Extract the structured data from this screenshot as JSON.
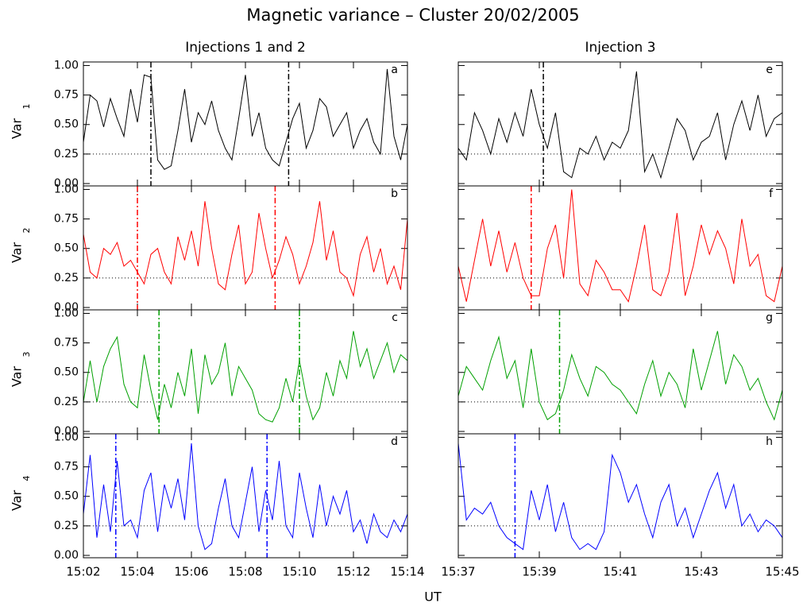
{
  "title": "Magnetic variance – Cluster 20/02/2005",
  "xlabel": "UT",
  "chart_data": [
    {
      "type": "line",
      "title": "Injections 1 and 2",
      "label": "a",
      "ylabel": "Var",
      "ylabel_sub": "1",
      "color": "#000000",
      "x": [
        2,
        2.25,
        2.5,
        2.75,
        3,
        3.25,
        3.5,
        3.75,
        4,
        4.25,
        4.5,
        4.75,
        5,
        5.25,
        5.5,
        5.75,
        6,
        6.25,
        6.5,
        6.75,
        7,
        7.25,
        7.5,
        7.75,
        8,
        8.25,
        8.5,
        8.75,
        9,
        9.25,
        9.5,
        9.75,
        10,
        10.25,
        10.5,
        10.75,
        11,
        11.25,
        11.5,
        11.75,
        12,
        12.25,
        12.5,
        12.75,
        13,
        13.25,
        13.5,
        13.75,
        14
      ],
      "values": [
        0.35,
        0.75,
        0.7,
        0.48,
        0.72,
        0.55,
        0.4,
        0.8,
        0.52,
        0.92,
        0.9,
        0.2,
        0.12,
        0.15,
        0.45,
        0.8,
        0.35,
        0.6,
        0.5,
        0.7,
        0.45,
        0.3,
        0.2,
        0.55,
        0.92,
        0.4,
        0.6,
        0.3,
        0.2,
        0.15,
        0.35,
        0.55,
        0.68,
        0.3,
        0.45,
        0.72,
        0.65,
        0.4,
        0.5,
        0.6,
        0.3,
        0.45,
        0.55,
        0.35,
        0.25,
        0.97,
        0.4,
        0.2,
        0.5
      ],
      "vlines": [
        4.5,
        9.6
      ],
      "hline": 0.25,
      "xlim": [
        2,
        14
      ],
      "xticks": [
        2,
        4,
        6,
        8,
        10,
        12,
        14
      ],
      "ylim": [
        -0.02,
        1.03
      ],
      "yticks": [
        {
          "value": 0,
          "label": "0.00"
        },
        {
          "value": 0.25,
          "label": "0.25"
        },
        {
          "value": 0.5,
          "label": "0.50"
        },
        {
          "value": 0.75,
          "label": "0.75"
        },
        {
          "value": 1,
          "label": "1.00"
        }
      ]
    },
    {
      "type": "line",
      "label": "b",
      "ylabel": "Var",
      "ylabel_sub": "2",
      "color": "#ff0000",
      "x": [
        2,
        2.25,
        2.5,
        2.75,
        3,
        3.25,
        3.5,
        3.75,
        4,
        4.25,
        4.5,
        4.75,
        5,
        5.25,
        5.5,
        5.75,
        6,
        6.25,
        6.5,
        6.75,
        7,
        7.25,
        7.5,
        7.75,
        8,
        8.25,
        8.5,
        8.75,
        9,
        9.25,
        9.5,
        9.75,
        10,
        10.25,
        10.5,
        10.75,
        11,
        11.25,
        11.5,
        11.75,
        12,
        12.25,
        12.5,
        12.75,
        13,
        13.25,
        13.5,
        13.75,
        14
      ],
      "values": [
        0.62,
        0.3,
        0.25,
        0.5,
        0.45,
        0.55,
        0.35,
        0.4,
        0.3,
        0.2,
        0.45,
        0.5,
        0.3,
        0.2,
        0.6,
        0.4,
        0.65,
        0.35,
        0.9,
        0.5,
        0.2,
        0.15,
        0.45,
        0.7,
        0.2,
        0.3,
        0.8,
        0.5,
        0.25,
        0.4,
        0.6,
        0.45,
        0.2,
        0.35,
        0.55,
        0.9,
        0.4,
        0.65,
        0.3,
        0.25,
        0.1,
        0.45,
        0.6,
        0.3,
        0.5,
        0.2,
        0.35,
        0.15,
        0.75
      ],
      "vlines": [
        4.0,
        9.1
      ],
      "hline": 0.25,
      "xlim": [
        2,
        14
      ],
      "xticks": [
        2,
        4,
        6,
        8,
        10,
        12,
        14
      ],
      "ylim": [
        -0.02,
        1.03
      ],
      "yticks": [
        {
          "value": 0,
          "label": "0.00"
        },
        {
          "value": 0.25,
          "label": "0.25"
        },
        {
          "value": 0.5,
          "label": "0.50"
        },
        {
          "value": 0.75,
          "label": "0.75"
        },
        {
          "value": 1,
          "label": "1.00"
        }
      ]
    },
    {
      "type": "line",
      "label": "c",
      "ylabel": "Var",
      "ylabel_sub": "3",
      "color": "#00a000",
      "x": [
        2,
        2.25,
        2.5,
        2.75,
        3,
        3.25,
        3.5,
        3.75,
        4,
        4.25,
        4.5,
        4.75,
        5,
        5.25,
        5.5,
        5.75,
        6,
        6.25,
        6.5,
        6.75,
        7,
        7.25,
        7.5,
        7.75,
        8,
        8.25,
        8.5,
        8.75,
        9,
        9.25,
        9.5,
        9.75,
        10,
        10.25,
        10.5,
        10.75,
        11,
        11.25,
        11.5,
        11.75,
        12,
        12.25,
        12.5,
        12.75,
        13,
        13.25,
        13.5,
        13.75,
        14
      ],
      "values": [
        0.25,
        0.6,
        0.25,
        0.55,
        0.7,
        0.8,
        0.4,
        0.25,
        0.2,
        0.65,
        0.35,
        0.1,
        0.4,
        0.2,
        0.5,
        0.3,
        0.7,
        0.15,
        0.65,
        0.4,
        0.5,
        0.75,
        0.3,
        0.55,
        0.45,
        0.35,
        0.15,
        0.1,
        0.08,
        0.2,
        0.45,
        0.25,
        0.6,
        0.3,
        0.1,
        0.2,
        0.5,
        0.3,
        0.6,
        0.45,
        0.85,
        0.55,
        0.7,
        0.45,
        0.6,
        0.75,
        0.5,
        0.65,
        0.6
      ],
      "vlines": [
        4.8,
        10.0
      ],
      "hline": 0.25,
      "xlim": [
        2,
        14
      ],
      "xticks": [
        2,
        4,
        6,
        8,
        10,
        12,
        14
      ],
      "ylim": [
        -0.02,
        1.03
      ],
      "yticks": [
        {
          "value": 0,
          "label": "0.00"
        },
        {
          "value": 0.25,
          "label": "0.25"
        },
        {
          "value": 0.5,
          "label": "0.50"
        },
        {
          "value": 0.75,
          "label": "0.75"
        },
        {
          "value": 1,
          "label": "1.00"
        }
      ]
    },
    {
      "type": "line",
      "label": "d",
      "ylabel": "Var",
      "ylabel_sub": "4",
      "color": "#0000ff",
      "x": [
        2,
        2.25,
        2.5,
        2.75,
        3,
        3.25,
        3.5,
        3.75,
        4,
        4.25,
        4.5,
        4.75,
        5,
        5.25,
        5.5,
        5.75,
        6,
        6.25,
        6.5,
        6.75,
        7,
        7.25,
        7.5,
        7.75,
        8,
        8.25,
        8.5,
        8.75,
        9,
        9.25,
        9.5,
        9.75,
        10,
        10.25,
        10.5,
        10.75,
        11,
        11.25,
        11.5,
        11.75,
        12,
        12.25,
        12.5,
        12.75,
        13,
        13.25,
        13.5,
        13.75,
        14
      ],
      "values": [
        0.35,
        0.85,
        0.15,
        0.6,
        0.2,
        0.8,
        0.25,
        0.3,
        0.15,
        0.55,
        0.7,
        0.2,
        0.6,
        0.4,
        0.65,
        0.3,
        0.95,
        0.25,
        0.05,
        0.1,
        0.4,
        0.65,
        0.25,
        0.15,
        0.45,
        0.75,
        0.2,
        0.55,
        0.3,
        0.8,
        0.25,
        0.15,
        0.7,
        0.4,
        0.15,
        0.6,
        0.25,
        0.5,
        0.35,
        0.55,
        0.2,
        0.3,
        0.1,
        0.35,
        0.2,
        0.15,
        0.3,
        0.2,
        0.35
      ],
      "vlines": [
        3.2,
        8.8
      ],
      "hline": 0.25,
      "xlim": [
        2,
        14
      ],
      "xticks": [
        {
          "value": 2,
          "label": "15:02"
        },
        {
          "value": 4,
          "label": "15:04"
        },
        {
          "value": 6,
          "label": "15:06"
        },
        {
          "value": 8,
          "label": "15:08"
        },
        {
          "value": 10,
          "label": "15:10"
        },
        {
          "value": 12,
          "label": "15:12"
        },
        {
          "value": 14,
          "label": "15:14"
        }
      ],
      "ylim": [
        -0.02,
        1.03
      ],
      "yticks": [
        {
          "value": 0,
          "label": "0.00"
        },
        {
          "value": 0.25,
          "label": "0.25"
        },
        {
          "value": 0.5,
          "label": "0.50"
        },
        {
          "value": 0.75,
          "label": "0.75"
        },
        {
          "value": 1,
          "label": "1.00"
        }
      ]
    },
    {
      "type": "line",
      "title": "Injection 3",
      "label": "e",
      "color": "#000000",
      "x": [
        37,
        37.2,
        37.4,
        37.6,
        37.8,
        38,
        38.2,
        38.4,
        38.6,
        38.8,
        39,
        39.2,
        39.4,
        39.6,
        39.8,
        40,
        40.2,
        40.4,
        40.6,
        40.8,
        41,
        41.2,
        41.4,
        41.6,
        41.8,
        42,
        42.2,
        42.4,
        42.6,
        42.8,
        43,
        43.2,
        43.4,
        43.6,
        43.8,
        44,
        44.2,
        44.4,
        44.6,
        44.8,
        45
      ],
      "values": [
        0.3,
        0.2,
        0.6,
        0.45,
        0.25,
        0.55,
        0.35,
        0.6,
        0.4,
        0.8,
        0.5,
        0.3,
        0.6,
        0.1,
        0.05,
        0.3,
        0.25,
        0.4,
        0.2,
        0.35,
        0.3,
        0.45,
        0.95,
        0.1,
        0.25,
        0.05,
        0.3,
        0.55,
        0.45,
        0.2,
        0.35,
        0.4,
        0.6,
        0.2,
        0.5,
        0.7,
        0.45,
        0.75,
        0.4,
        0.55,
        0.6
      ],
      "vlines": [
        39.1
      ],
      "hline": 0.25,
      "xlim": [
        37,
        45
      ],
      "xticks": [
        37,
        39,
        41,
        43,
        45
      ],
      "ylim": [
        -0.02,
        1.03
      ],
      "yticks": [
        0,
        0.25,
        0.5,
        0.75,
        1
      ]
    },
    {
      "type": "line",
      "label": "f",
      "color": "#ff0000",
      "x": [
        37,
        37.2,
        37.4,
        37.6,
        37.8,
        38,
        38.2,
        38.4,
        38.6,
        38.8,
        39,
        39.2,
        39.4,
        39.6,
        39.8,
        40,
        40.2,
        40.4,
        40.6,
        40.8,
        41,
        41.2,
        41.4,
        41.6,
        41.8,
        42,
        42.2,
        42.4,
        42.6,
        42.8,
        43,
        43.2,
        43.4,
        43.6,
        43.8,
        44,
        44.2,
        44.4,
        44.6,
        44.8,
        45
      ],
      "values": [
        0.35,
        0.05,
        0.4,
        0.75,
        0.35,
        0.65,
        0.3,
        0.55,
        0.25,
        0.1,
        0.1,
        0.5,
        0.7,
        0.25,
        1.0,
        0.2,
        0.1,
        0.4,
        0.3,
        0.15,
        0.15,
        0.05,
        0.35,
        0.7,
        0.15,
        0.1,
        0.3,
        0.8,
        0.1,
        0.35,
        0.7,
        0.45,
        0.65,
        0.5,
        0.2,
        0.75,
        0.35,
        0.45,
        0.1,
        0.05,
        0.35
      ],
      "vlines": [
        38.8
      ],
      "hline": 0.25,
      "xlim": [
        37,
        45
      ],
      "xticks": [
        37,
        39,
        41,
        43,
        45
      ],
      "ylim": [
        -0.02,
        1.03
      ],
      "yticks": [
        0,
        0.25,
        0.5,
        0.75,
        1
      ]
    },
    {
      "type": "line",
      "label": "g",
      "color": "#00a000",
      "x": [
        37,
        37.2,
        37.4,
        37.6,
        37.8,
        38,
        38.2,
        38.4,
        38.6,
        38.8,
        39,
        39.2,
        39.4,
        39.6,
        39.8,
        40,
        40.2,
        40.4,
        40.6,
        40.8,
        41,
        41.2,
        41.4,
        41.6,
        41.8,
        42,
        42.2,
        42.4,
        42.6,
        42.8,
        43,
        43.2,
        43.4,
        43.6,
        43.8,
        44,
        44.2,
        44.4,
        44.6,
        44.8,
        45
      ],
      "values": [
        0.3,
        0.55,
        0.45,
        0.35,
        0.6,
        0.8,
        0.45,
        0.6,
        0.2,
        0.7,
        0.25,
        0.1,
        0.15,
        0.35,
        0.65,
        0.45,
        0.3,
        0.55,
        0.5,
        0.4,
        0.35,
        0.25,
        0.15,
        0.4,
        0.6,
        0.3,
        0.5,
        0.4,
        0.2,
        0.7,
        0.35,
        0.6,
        0.85,
        0.4,
        0.65,
        0.55,
        0.35,
        0.45,
        0.25,
        0.1,
        0.35
      ],
      "vlines": [
        39.5
      ],
      "hline": 0.25,
      "xlim": [
        37,
        45
      ],
      "xticks": [
        37,
        39,
        41,
        43,
        45
      ],
      "ylim": [
        -0.02,
        1.03
      ],
      "yticks": [
        0,
        0.25,
        0.5,
        0.75,
        1
      ]
    },
    {
      "type": "line",
      "label": "h",
      "color": "#0000ff",
      "x": [
        37,
        37.2,
        37.4,
        37.6,
        37.8,
        38,
        38.2,
        38.4,
        38.6,
        38.8,
        39,
        39.2,
        39.4,
        39.6,
        39.8,
        40,
        40.2,
        40.4,
        40.6,
        40.8,
        41,
        41.2,
        41.4,
        41.6,
        41.8,
        42,
        42.2,
        42.4,
        42.6,
        42.8,
        43,
        43.2,
        43.4,
        43.6,
        43.8,
        44,
        44.2,
        44.4,
        44.6,
        44.8,
        45
      ],
      "values": [
        0.95,
        0.3,
        0.4,
        0.35,
        0.45,
        0.25,
        0.15,
        0.1,
        0.05,
        0.55,
        0.3,
        0.6,
        0.2,
        0.45,
        0.15,
        0.05,
        0.1,
        0.05,
        0.2,
        0.85,
        0.7,
        0.45,
        0.6,
        0.35,
        0.15,
        0.45,
        0.6,
        0.25,
        0.4,
        0.15,
        0.35,
        0.55,
        0.7,
        0.4,
        0.6,
        0.25,
        0.35,
        0.2,
        0.3,
        0.25,
        0.15
      ],
      "vlines": [
        38.4
      ],
      "hline": 0.25,
      "xlim": [
        37,
        45
      ],
      "xticks": [
        {
          "value": 37,
          "label": "15:37"
        },
        {
          "value": 39,
          "label": "15:39"
        },
        {
          "value": 41,
          "label": "15:41"
        },
        {
          "value": 43,
          "label": "15:43"
        },
        {
          "value": 45,
          "label": "15:45"
        }
      ],
      "ylim": [
        -0.02,
        1.03
      ],
      "yticks": [
        0,
        0.25,
        0.5,
        0.75,
        1
      ]
    }
  ]
}
